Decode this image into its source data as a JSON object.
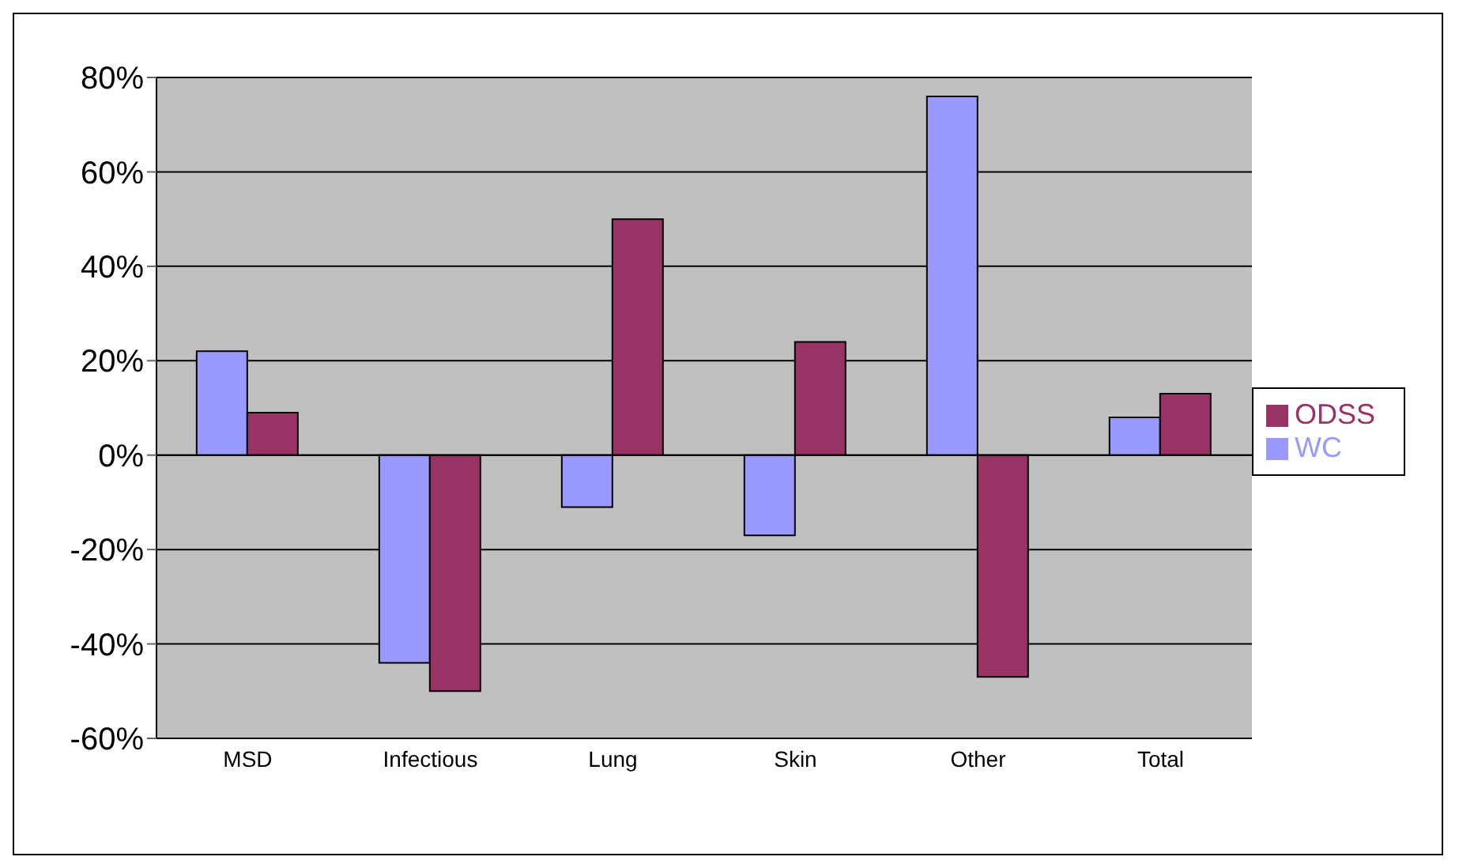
{
  "chart_data": {
    "type": "bar",
    "categories": [
      "MSD",
      "Infectious",
      "Lung",
      "Skin",
      "Other",
      "Total"
    ],
    "series": [
      {
        "name": "WC",
        "color": "#9999ff",
        "values": [
          22,
          -44,
          -11,
          -17,
          76,
          8
        ]
      },
      {
        "name": "ODSS",
        "color": "#993366",
        "values": [
          9,
          -50,
          50,
          24,
          -47,
          13
        ]
      }
    ],
    "ylim": [
      -60,
      80
    ],
    "yticks": [
      {
        "value": -60,
        "label": "-60%"
      },
      {
        "value": -40,
        "label": "-40%"
      },
      {
        "value": -20,
        "label": "-20%"
      },
      {
        "value": 0,
        "label": "0%"
      },
      {
        "value": 20,
        "label": "20%"
      },
      {
        "value": 40,
        "label": "40%"
      },
      {
        "value": 60,
        "label": "60%"
      },
      {
        "value": 80,
        "label": "80%"
      }
    ],
    "grid": "y",
    "legend": "right"
  }
}
